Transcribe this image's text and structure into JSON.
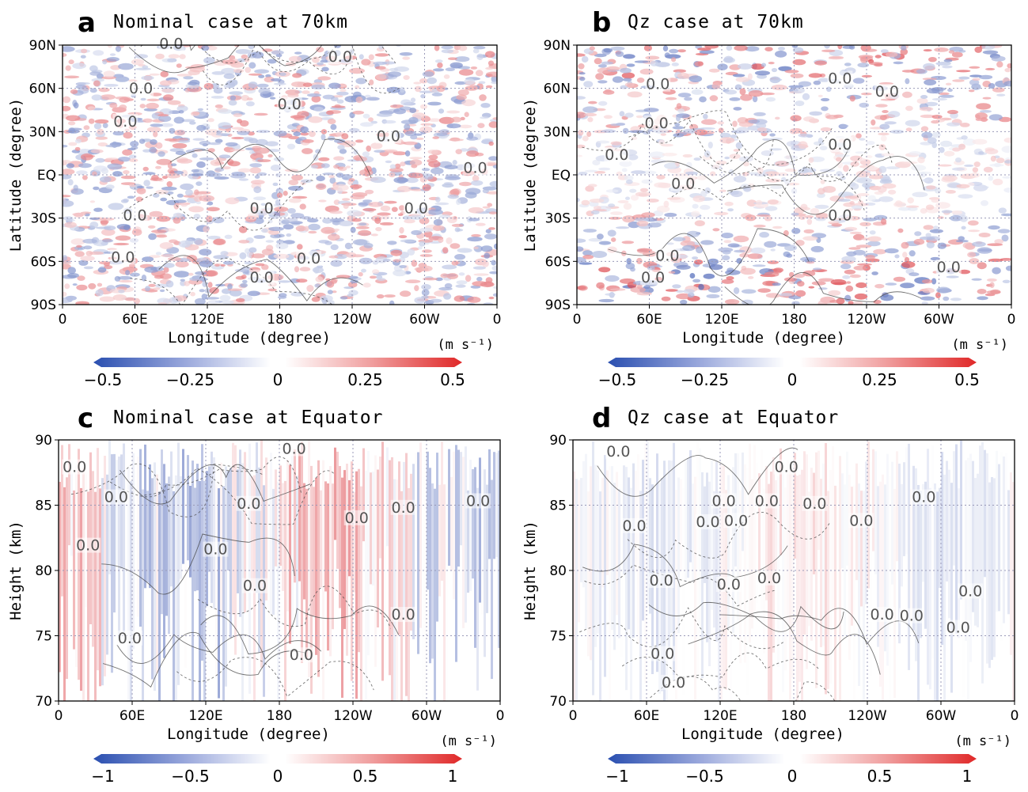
{
  "chart_data": [
    {
      "type": "heatmap",
      "panel": "a",
      "title": "Nominal case at 70km",
      "xlabel": "Longitude (degree)",
      "ylabel": "Latitude (degree)",
      "xticks": [
        "0",
        "60E",
        "120E",
        "180",
        "120W",
        "60W",
        "0"
      ],
      "yticks": [
        "90N",
        "60N",
        "30N",
        "EQ",
        "30S",
        "60S",
        "90S"
      ],
      "unit": "(m s⁻¹)",
      "colorbar": {
        "min": -0.5,
        "max": 0.5,
        "ticks": [
          "−0.5",
          "−0.25",
          "0",
          "0.25",
          "0.5"
        ]
      },
      "contour_labels": [
        {
          "text": "0.0",
          "lon": 90,
          "lat": 88
        },
        {
          "text": "0.0",
          "lon": 230,
          "lat": 79
        },
        {
          "text": "0.0",
          "lon": 65,
          "lat": 57
        },
        {
          "text": "0.0",
          "lon": 188,
          "lat": 46
        },
        {
          "text": "0.0",
          "lon": 52,
          "lat": 34
        },
        {
          "text": "0.0",
          "lon": 270,
          "lat": 24
        },
        {
          "text": "0.0",
          "lon": 342,
          "lat": 2
        },
        {
          "text": "0.0",
          "lon": 165,
          "lat": -26
        },
        {
          "text": "0.0",
          "lon": 293,
          "lat": -26
        },
        {
          "text": "0.0",
          "lon": 60,
          "lat": -31
        },
        {
          "text": "0.0",
          "lon": 50,
          "lat": -60
        },
        {
          "text": "0.0",
          "lon": 204,
          "lat": -61
        },
        {
          "text": "0.0",
          "lon": 165,
          "lat": -74
        }
      ]
    },
    {
      "type": "heatmap",
      "panel": "b",
      "title": "Qz case at 70km",
      "xlabel": "Longitude (degree)",
      "ylabel": "Latitude (degree)",
      "xticks": [
        "0",
        "60E",
        "120E",
        "180",
        "120W",
        "60W",
        "0"
      ],
      "yticks": [
        "90N",
        "60N",
        "30N",
        "EQ",
        "30S",
        "60S",
        "90S"
      ],
      "unit": "(m s⁻¹)",
      "colorbar": {
        "min": -0.5,
        "max": 0.5,
        "ticks": [
          "−0.5",
          "−0.25",
          "0",
          "0.25",
          "0.5"
        ]
      },
      "contour_labels": [
        {
          "text": "0.0",
          "lon": 218,
          "lat": 64
        },
        {
          "text": "0.0",
          "lon": 67,
          "lat": 60
        },
        {
          "text": "0.0",
          "lon": 257,
          "lat": 55
        },
        {
          "text": "0.0",
          "lon": 66,
          "lat": 33
        },
        {
          "text": "0.0",
          "lon": 218,
          "lat": 18
        },
        {
          "text": "0.0",
          "lon": 33,
          "lat": 11
        },
        {
          "text": "0.0",
          "lon": 88,
          "lat": -9
        },
        {
          "text": "0.0",
          "lon": 218,
          "lat": -31
        },
        {
          "text": "0.0",
          "lon": 75,
          "lat": -59
        },
        {
          "text": "0.0",
          "lon": 308,
          "lat": -67
        },
        {
          "text": "0.0",
          "lon": 63,
          "lat": -74
        }
      ]
    },
    {
      "type": "heatmap",
      "panel": "c",
      "title": "Nominal case at Equator",
      "xlabel": "Longitude (degree)",
      "ylabel": "Height (km)",
      "xticks": [
        "0",
        "60E",
        "120E",
        "180",
        "120W",
        "60W",
        "0"
      ],
      "yticks": [
        "90",
        "85",
        "80",
        "75",
        "70"
      ],
      "unit": "(m s⁻¹)",
      "colorbar": {
        "min": -1,
        "max": 1,
        "ticks": [
          "−1",
          "−0.5",
          "0",
          "0.5",
          "1"
        ]
      },
      "contour_labels": [
        {
          "text": "0.0",
          "lon": 192,
          "lat": 89
        },
        {
          "text": "0.0",
          "lon": 13,
          "lat": 87.6
        },
        {
          "text": "0.0",
          "lon": 47,
          "lat": 85.3
        },
        {
          "text": "0.0",
          "lon": 155,
          "lat": 84.8
        },
        {
          "text": "0.0",
          "lon": 281,
          "lat": 84.5
        },
        {
          "text": "0.0",
          "lon": 342,
          "lat": 85
        },
        {
          "text": "0.0",
          "lon": 243,
          "lat": 83.7
        },
        {
          "text": "0.0",
          "lon": 24,
          "lat": 81.6
        },
        {
          "text": "0.0",
          "lon": 128,
          "lat": 81.3
        },
        {
          "text": "0.0",
          "lon": 160,
          "lat": 78.5
        },
        {
          "text": "0.0",
          "lon": 281,
          "lat": 76.3
        },
        {
          "text": "0.0",
          "lon": 58,
          "lat": 74.5
        },
        {
          "text": "0.0",
          "lon": 198,
          "lat": 73.2
        }
      ]
    },
    {
      "type": "heatmap",
      "panel": "d",
      "title": "Qz case at Equator",
      "xlabel": "Longitude (degree)",
      "ylabel": "Height (km)",
      "xticks": [
        "0",
        "60E",
        "120E",
        "180",
        "120W",
        "60W",
        "0"
      ],
      "yticks": [
        "90",
        "85",
        "80",
        "75",
        "70"
      ],
      "unit": "(m s⁻¹)",
      "colorbar": {
        "min": -1,
        "max": 1,
        "ticks": [
          "−1",
          "−0.5",
          "0",
          "0.5",
          "1"
        ]
      },
      "contour_labels": [
        {
          "text": "0.0",
          "lon": 37,
          "lat": 88.8
        },
        {
          "text": "0.0",
          "lon": 174,
          "lat": 87.6
        },
        {
          "text": "0.0",
          "lon": 286,
          "lat": 85.3
        },
        {
          "text": "0.0",
          "lon": 123,
          "lat": 85
        },
        {
          "text": "0.0",
          "lon": 158,
          "lat": 85
        },
        {
          "text": "0.0",
          "lon": 197,
          "lat": 84.8
        },
        {
          "text": "0.0",
          "lon": 110,
          "lat": 83.4
        },
        {
          "text": "0.0",
          "lon": 133,
          "lat": 83.5
        },
        {
          "text": "0.0",
          "lon": 50,
          "lat": 83.1
        },
        {
          "text": "0.0",
          "lon": 235,
          "lat": 83.5
        },
        {
          "text": "0.0",
          "lon": 72,
          "lat": 78.9
        },
        {
          "text": "0.0",
          "lon": 127,
          "lat": 78.6
        },
        {
          "text": "0.0",
          "lon": 160,
          "lat": 79.1
        },
        {
          "text": "0.0",
          "lon": 324,
          "lat": 78.1
        },
        {
          "text": "0.0",
          "lon": 252,
          "lat": 76.3
        },
        {
          "text": "0.0",
          "lon": 276,
          "lat": 76.2
        },
        {
          "text": "0.0",
          "lon": 314,
          "lat": 75.3
        },
        {
          "text": "0.0",
          "lon": 73,
          "lat": 73.3
        },
        {
          "text": "0.0",
          "lon": 82,
          "lat": 71.1
        }
      ]
    }
  ]
}
